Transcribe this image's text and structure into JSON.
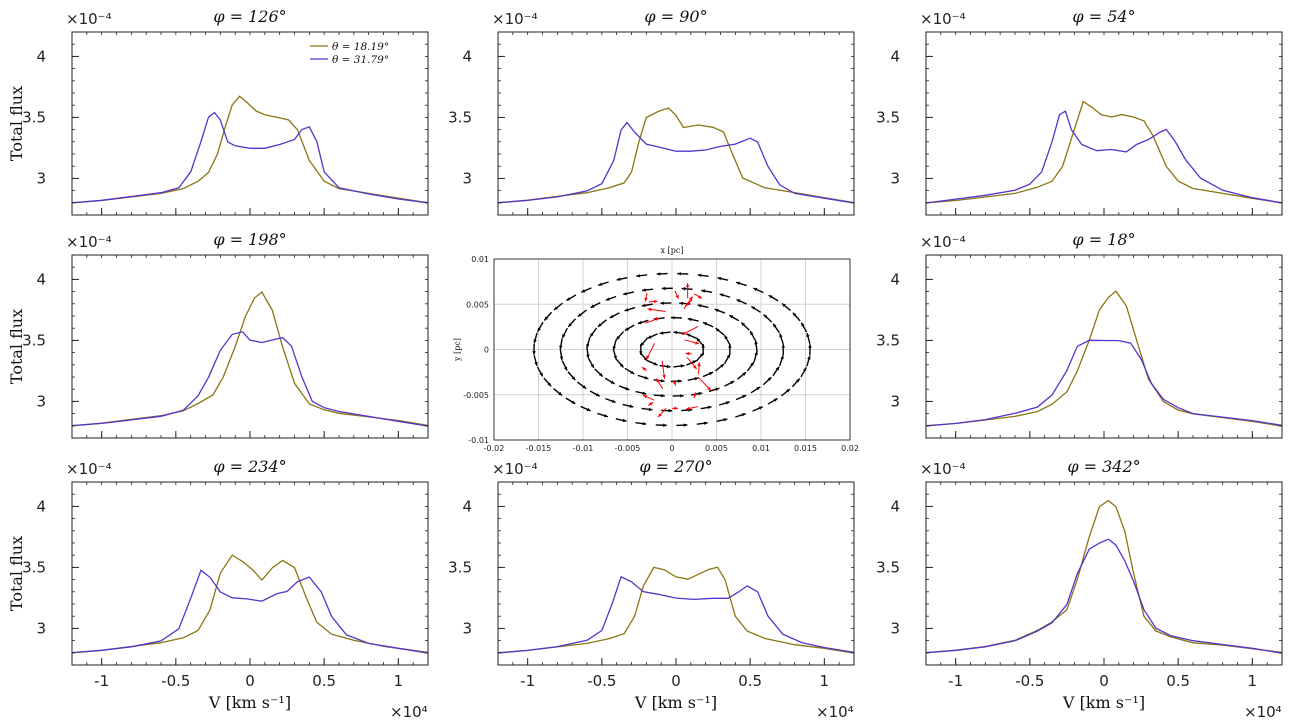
{
  "figure": {
    "ylabel": "Total flux",
    "xlabel": "V [km s⁻¹]",
    "y_exponent_label": "×10⁻⁴",
    "x_exponent_label": "×10⁴"
  },
  "legend": {
    "entries": [
      "θ = 18.19°",
      "θ = 31.79°"
    ]
  },
  "colors": {
    "series_1": "#8B7513",
    "series_2": "#5533CC",
    "arrows_outer": "#000000",
    "arrows_inner": "#ff0000"
  },
  "chart_data": [
    {
      "type": "line",
      "title": "φ = 126°",
      "xlim": [
        -1.2,
        1.2
      ],
      "ylim": [
        2.7,
        4.2
      ],
      "xticks": [
        "-1",
        "-0.5",
        "0",
        "0.5",
        "1"
      ],
      "yticks": [
        "3",
        "3.5",
        "4"
      ],
      "series": [
        {
          "name": "θ = 18.19°",
          "x": [
            -1.2,
            -1.0,
            -0.8,
            -0.6,
            -0.45,
            -0.35,
            -0.28,
            -0.22,
            -0.16,
            -0.12,
            -0.07,
            -0.02,
            0.04,
            0.1,
            0.18,
            0.26,
            0.32,
            0.4,
            0.5,
            0.6,
            0.8,
            1.0,
            1.2
          ],
          "values": [
            2.8,
            2.82,
            2.85,
            2.88,
            2.92,
            2.98,
            3.05,
            3.2,
            3.45,
            3.6,
            3.67,
            3.62,
            3.55,
            3.52,
            3.5,
            3.48,
            3.4,
            3.15,
            2.98,
            2.92,
            2.88,
            2.84,
            2.8
          ]
        },
        {
          "name": "θ = 31.79°",
          "x": [
            -1.2,
            -1.0,
            -0.8,
            -0.6,
            -0.48,
            -0.4,
            -0.33,
            -0.28,
            -0.24,
            -0.2,
            -0.15,
            -0.1,
            0.0,
            0.1,
            0.2,
            0.3,
            0.35,
            0.4,
            0.45,
            0.5,
            0.6,
            0.8,
            1.0,
            1.2
          ],
          "values": [
            2.8,
            2.82,
            2.85,
            2.88,
            2.92,
            3.05,
            3.3,
            3.5,
            3.54,
            3.48,
            3.3,
            3.27,
            3.25,
            3.25,
            3.28,
            3.32,
            3.4,
            3.42,
            3.3,
            3.05,
            2.92,
            2.87,
            2.83,
            2.8
          ]
        }
      ]
    },
    {
      "type": "line",
      "title": "φ = 90°",
      "xlim": [
        -1.2,
        1.2
      ],
      "ylim": [
        2.7,
        4.2
      ],
      "xticks": [
        "-1",
        "-0.5",
        "0",
        "0.5",
        "1"
      ],
      "yticks": [
        "3",
        "3.5",
        "4"
      ],
      "series": [
        {
          "name": "θ = 18.19°",
          "x": [
            -1.2,
            -1.0,
            -0.8,
            -0.6,
            -0.45,
            -0.35,
            -0.3,
            -0.25,
            -0.2,
            -0.12,
            -0.05,
            0.0,
            0.05,
            0.15,
            0.25,
            0.32,
            0.38,
            0.45,
            0.6,
            0.8,
            1.0,
            1.2
          ],
          "values": [
            2.8,
            2.82,
            2.85,
            2.88,
            2.92,
            2.96,
            3.05,
            3.3,
            3.5,
            3.55,
            3.58,
            3.52,
            3.42,
            3.44,
            3.42,
            3.38,
            3.2,
            3.0,
            2.92,
            2.88,
            2.84,
            2.8
          ]
        },
        {
          "name": "θ = 31.79°",
          "x": [
            -1.2,
            -1.0,
            -0.8,
            -0.6,
            -0.5,
            -0.42,
            -0.37,
            -0.33,
            -0.28,
            -0.2,
            -0.1,
            0.0,
            0.1,
            0.2,
            0.3,
            0.4,
            0.5,
            0.55,
            0.62,
            0.7,
            0.8,
            1.0,
            1.2
          ],
          "values": [
            2.8,
            2.82,
            2.85,
            2.9,
            2.96,
            3.15,
            3.4,
            3.46,
            3.38,
            3.28,
            3.25,
            3.22,
            3.22,
            3.23,
            3.26,
            3.28,
            3.33,
            3.3,
            3.1,
            2.95,
            2.88,
            2.84,
            2.8
          ]
        }
      ]
    },
    {
      "type": "line",
      "title": "φ = 54°",
      "xlim": [
        -1.2,
        1.2
      ],
      "ylim": [
        2.7,
        4.2
      ],
      "xticks": [
        "-1",
        "-0.5",
        "0",
        "0.5",
        "1"
      ],
      "yticks": [
        "3",
        "3.5",
        "4"
      ],
      "series": [
        {
          "name": "θ = 18.19°",
          "x": [
            -1.2,
            -1.0,
            -0.8,
            -0.6,
            -0.45,
            -0.35,
            -0.28,
            -0.2,
            -0.14,
            -0.08,
            -0.02,
            0.05,
            0.12,
            0.2,
            0.27,
            0.33,
            0.42,
            0.5,
            0.6,
            0.8,
            1.0,
            1.2
          ],
          "values": [
            2.8,
            2.82,
            2.85,
            2.88,
            2.93,
            2.98,
            3.1,
            3.4,
            3.63,
            3.58,
            3.52,
            3.5,
            3.52,
            3.5,
            3.47,
            3.35,
            3.1,
            2.98,
            2.92,
            2.88,
            2.84,
            2.8
          ]
        },
        {
          "name": "θ = 31.79°",
          "x": [
            -1.2,
            -1.0,
            -0.8,
            -0.6,
            -0.5,
            -0.42,
            -0.35,
            -0.3,
            -0.26,
            -0.22,
            -0.15,
            -0.05,
            0.05,
            0.15,
            0.22,
            0.3,
            0.38,
            0.42,
            0.48,
            0.55,
            0.65,
            0.8,
            1.0,
            1.2
          ],
          "values": [
            2.8,
            2.83,
            2.86,
            2.9,
            2.95,
            3.05,
            3.3,
            3.52,
            3.55,
            3.4,
            3.28,
            3.23,
            3.24,
            3.22,
            3.28,
            3.32,
            3.38,
            3.4,
            3.3,
            3.15,
            3.0,
            2.9,
            2.84,
            2.8
          ]
        }
      ]
    },
    {
      "type": "line",
      "title": "φ = 198°",
      "xlim": [
        -1.2,
        1.2
      ],
      "ylim": [
        2.7,
        4.2
      ],
      "xticks": [
        "-1",
        "-0.5",
        "0",
        "0.5",
        "1"
      ],
      "yticks": [
        "3",
        "3.5",
        "4"
      ],
      "series": [
        {
          "name": "θ = 18.19°",
          "x": [
            -1.2,
            -1.0,
            -0.8,
            -0.6,
            -0.45,
            -0.35,
            -0.25,
            -0.18,
            -0.1,
            -0.03,
            0.03,
            0.08,
            0.15,
            0.22,
            0.3,
            0.4,
            0.5,
            0.6,
            0.8,
            1.0,
            1.2
          ],
          "values": [
            2.8,
            2.82,
            2.85,
            2.88,
            2.92,
            2.98,
            3.05,
            3.2,
            3.45,
            3.7,
            3.85,
            3.9,
            3.75,
            3.45,
            3.15,
            2.98,
            2.93,
            2.9,
            2.87,
            2.84,
            2.8
          ]
        },
        {
          "name": "θ = 31.79°",
          "x": [
            -1.2,
            -1.0,
            -0.8,
            -0.6,
            -0.45,
            -0.35,
            -0.28,
            -0.2,
            -0.12,
            -0.05,
            0.0,
            0.08,
            0.15,
            0.22,
            0.28,
            0.35,
            0.42,
            0.5,
            0.6,
            0.8,
            1.0,
            1.2
          ],
          "values": [
            2.8,
            2.82,
            2.85,
            2.88,
            2.93,
            3.05,
            3.2,
            3.42,
            3.55,
            3.57,
            3.5,
            3.48,
            3.5,
            3.52,
            3.45,
            3.2,
            3.0,
            2.95,
            2.92,
            2.88,
            2.84,
            2.8
          ]
        }
      ]
    },
    {
      "type": "line",
      "title": "φ = 18°",
      "xlim": [
        -1.2,
        1.2
      ],
      "ylim": [
        2.7,
        4.2
      ],
      "xticks": [
        "-1",
        "-0.5",
        "0",
        "0.5",
        "1"
      ],
      "yticks": [
        "3",
        "3.5",
        "4"
      ],
      "series": [
        {
          "name": "θ = 18.19°",
          "x": [
            -1.2,
            -1.0,
            -0.8,
            -0.6,
            -0.45,
            -0.35,
            -0.25,
            -0.18,
            -0.1,
            -0.03,
            0.03,
            0.08,
            0.15,
            0.22,
            0.3,
            0.4,
            0.5,
            0.6,
            0.8,
            1.0,
            1.2
          ],
          "values": [
            2.8,
            2.82,
            2.85,
            2.88,
            2.92,
            2.98,
            3.08,
            3.25,
            3.5,
            3.75,
            3.85,
            3.9,
            3.78,
            3.5,
            3.18,
            3.0,
            2.93,
            2.9,
            2.87,
            2.84,
            2.8
          ]
        },
        {
          "name": "θ = 31.79°",
          "x": [
            -1.2,
            -1.0,
            -0.8,
            -0.6,
            -0.45,
            -0.35,
            -0.25,
            -0.18,
            -0.1,
            0.0,
            0.1,
            0.18,
            0.25,
            0.32,
            0.4,
            0.5,
            0.6,
            0.8,
            1.0,
            1.2
          ],
          "values": [
            2.8,
            2.82,
            2.85,
            2.9,
            2.95,
            3.05,
            3.25,
            3.45,
            3.5,
            3.5,
            3.5,
            3.48,
            3.35,
            3.15,
            3.02,
            2.95,
            2.9,
            2.87,
            2.84,
            2.8
          ]
        }
      ]
    },
    {
      "type": "line",
      "title": "φ = 234°",
      "xlim": [
        -1.2,
        1.2
      ],
      "ylim": [
        2.7,
        4.2
      ],
      "xticks": [
        "-1",
        "-0.5",
        "0",
        "0.5",
        "1"
      ],
      "yticks": [
        "3",
        "3.5",
        "4"
      ],
      "series": [
        {
          "name": "θ = 18.19°",
          "x": [
            -1.2,
            -1.0,
            -0.8,
            -0.6,
            -0.45,
            -0.35,
            -0.27,
            -0.2,
            -0.12,
            -0.05,
            0.02,
            0.08,
            0.15,
            0.22,
            0.3,
            0.38,
            0.45,
            0.55,
            0.7,
            0.9,
            1.2
          ],
          "values": [
            2.8,
            2.82,
            2.85,
            2.88,
            2.92,
            2.98,
            3.15,
            3.45,
            3.6,
            3.55,
            3.48,
            3.4,
            3.5,
            3.56,
            3.5,
            3.25,
            3.05,
            2.95,
            2.9,
            2.85,
            2.8
          ]
        },
        {
          "name": "θ = 31.79°",
          "x": [
            -1.2,
            -1.0,
            -0.8,
            -0.6,
            -0.48,
            -0.4,
            -0.33,
            -0.27,
            -0.2,
            -0.12,
            -0.02,
            0.08,
            0.18,
            0.25,
            0.32,
            0.4,
            0.48,
            0.55,
            0.65,
            0.8,
            1.0,
            1.2
          ],
          "values": [
            2.8,
            2.82,
            2.85,
            2.9,
            3.0,
            3.25,
            3.48,
            3.42,
            3.3,
            3.25,
            3.24,
            3.22,
            3.28,
            3.3,
            3.38,
            3.42,
            3.3,
            3.1,
            2.95,
            2.88,
            2.84,
            2.8
          ]
        }
      ]
    },
    {
      "type": "line",
      "title": "φ = 270°",
      "xlim": [
        -1.2,
        1.2
      ],
      "ylim": [
        2.7,
        4.2
      ],
      "xticks": [
        "-1",
        "-0.5",
        "0",
        "0.5",
        "1"
      ],
      "yticks": [
        "3",
        "3.5",
        "4"
      ],
      "series": [
        {
          "name": "θ = 18.19°",
          "x": [
            -1.2,
            -1.0,
            -0.8,
            -0.6,
            -0.45,
            -0.35,
            -0.28,
            -0.22,
            -0.15,
            -0.08,
            0.0,
            0.08,
            0.15,
            0.22,
            0.28,
            0.33,
            0.4,
            0.48,
            0.6,
            0.8,
            1.0,
            1.2
          ],
          "values": [
            2.8,
            2.82,
            2.85,
            2.88,
            2.92,
            2.96,
            3.1,
            3.35,
            3.5,
            3.48,
            3.42,
            3.4,
            3.44,
            3.48,
            3.5,
            3.4,
            3.1,
            2.98,
            2.92,
            2.87,
            2.84,
            2.8
          ]
        },
        {
          "name": "θ = 31.79°",
          "x": [
            -1.2,
            -1.0,
            -0.8,
            -0.6,
            -0.5,
            -0.43,
            -0.37,
            -0.3,
            -0.22,
            -0.12,
            0.0,
            0.12,
            0.25,
            0.35,
            0.42,
            0.48,
            0.55,
            0.62,
            0.72,
            0.85,
            1.0,
            1.2
          ],
          "values": [
            2.8,
            2.82,
            2.85,
            2.9,
            2.98,
            3.2,
            3.42,
            3.38,
            3.3,
            3.28,
            3.25,
            3.24,
            3.25,
            3.25,
            3.3,
            3.35,
            3.3,
            3.1,
            2.95,
            2.88,
            2.84,
            2.8
          ]
        }
      ]
    },
    {
      "type": "line",
      "title": "φ = 342°",
      "xlim": [
        -1.2,
        1.2
      ],
      "ylim": [
        2.7,
        4.2
      ],
      "xticks": [
        "-1",
        "-0.5",
        "0",
        "0.5",
        "1"
      ],
      "yticks": [
        "3",
        "3.5",
        "4"
      ],
      "series": [
        {
          "name": "θ = 18.19°",
          "x": [
            -1.2,
            -1.0,
            -0.8,
            -0.6,
            -0.45,
            -0.35,
            -0.25,
            -0.18,
            -0.1,
            -0.03,
            0.03,
            0.08,
            0.14,
            0.2,
            0.27,
            0.35,
            0.45,
            0.6,
            0.8,
            1.0,
            1.2
          ],
          "values": [
            2.8,
            2.82,
            2.85,
            2.9,
            2.98,
            3.05,
            3.15,
            3.4,
            3.75,
            4.0,
            4.05,
            4.0,
            3.8,
            3.45,
            3.1,
            2.98,
            2.93,
            2.88,
            2.86,
            2.83,
            2.8
          ]
        },
        {
          "name": "θ = 31.79°",
          "x": [
            -1.2,
            -1.0,
            -0.8,
            -0.6,
            -0.45,
            -0.35,
            -0.25,
            -0.18,
            -0.1,
            -0.03,
            0.03,
            0.08,
            0.14,
            0.2,
            0.27,
            0.35,
            0.45,
            0.6,
            0.8,
            1.0,
            1.2
          ],
          "values": [
            2.8,
            2.82,
            2.85,
            2.9,
            2.98,
            3.05,
            3.2,
            3.45,
            3.65,
            3.7,
            3.73,
            3.68,
            3.55,
            3.38,
            3.15,
            3.0,
            2.94,
            2.9,
            2.87,
            2.84,
            2.8
          ]
        }
      ]
    },
    {
      "type": "scatter",
      "xlabel": "x [pc]",
      "ylabel": "y [pc]",
      "xlim": [
        -0.02,
        0.02
      ],
      "ylim": [
        -0.01,
        0.01
      ],
      "xticks": [
        "-0.02",
        "-0.015",
        "-0.01",
        "-0.005",
        "0",
        "0.005",
        "0.01",
        "0.015",
        "0.02"
      ],
      "yticks": [
        "-0.01",
        "-0.005",
        "0",
        "0.005",
        "0.01"
      ],
      "grid": true,
      "description_of_marks": "velocity arrows: black arrows circulating in a ring around the origin, red arrows in the central region",
      "rings_radii_x": [
        0.0035,
        0.0065,
        0.0095,
        0.0125,
        0.0155
      ],
      "ring_aspect": 0.55,
      "inner_region_extent": [
        0.003,
        0.0065
      ]
    }
  ]
}
